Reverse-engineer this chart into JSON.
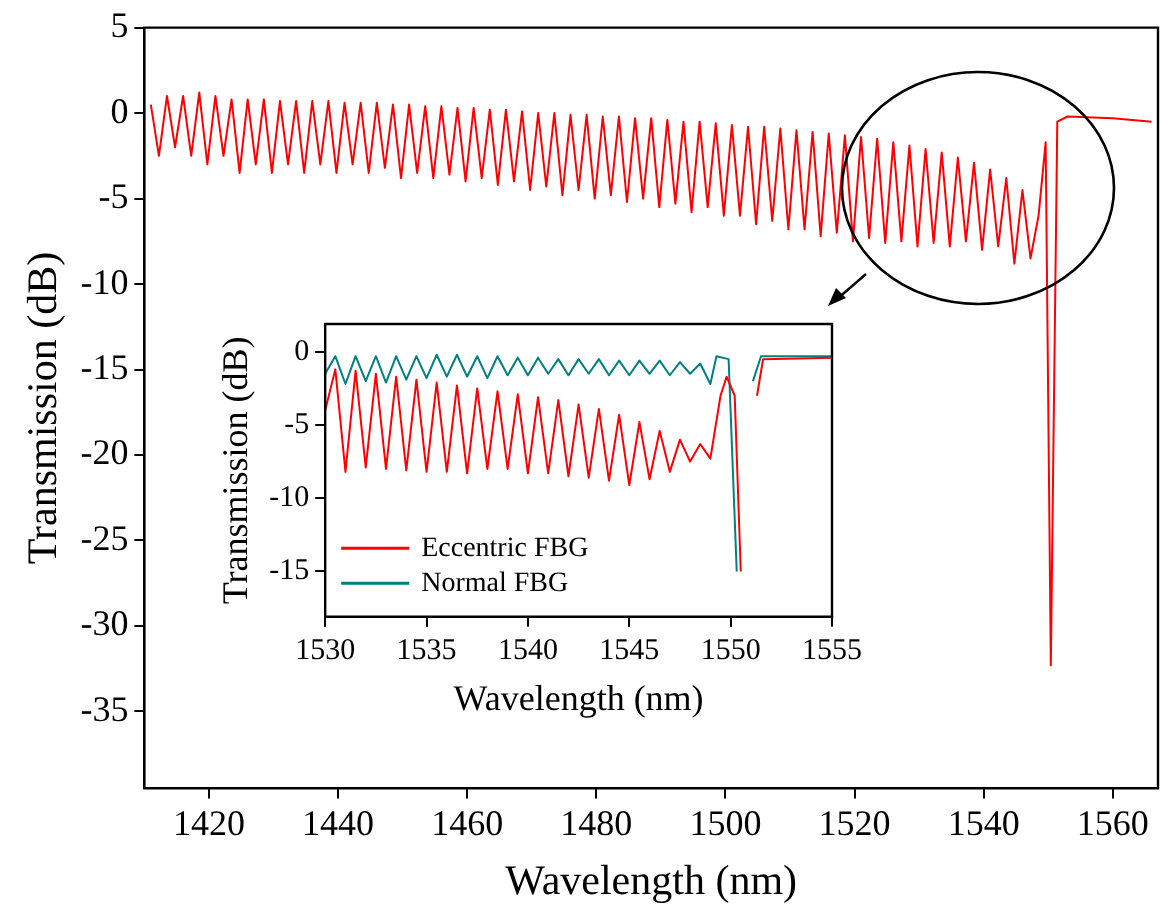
{
  "chart_data": [
    {
      "type": "line",
      "xlabel": "Wavelength (nm)",
      "ylabel": "Transmission (dB)",
      "xlim": [
        1410,
        1567
      ],
      "ylim": [
        -39.5,
        5
      ],
      "xticks": [
        1420,
        1440,
        1460,
        1480,
        1500,
        1520,
        1540,
        1560
      ],
      "yticks": [
        -35,
        -30,
        -25,
        -20,
        -15,
        -10,
        -5,
        0,
        5
      ],
      "grid": false,
      "series": [
        {
          "color": "#ff0000",
          "x": [
            1411,
            1412.25,
            1413.5,
            1414.75,
            1416,
            1417.25,
            1418.5,
            1419.75,
            1421,
            1422.25,
            1423.5,
            1424.75,
            1426,
            1427.25,
            1428.5,
            1429.75,
            1431,
            1432.25,
            1433.5,
            1434.75,
            1436,
            1437.25,
            1438.5,
            1439.75,
            1441,
            1442.25,
            1443.5,
            1444.75,
            1446,
            1447.25,
            1448.5,
            1449.75,
            1451,
            1452.25,
            1453.5,
            1454.75,
            1456,
            1457.25,
            1458.5,
            1459.75,
            1461,
            1462.25,
            1463.5,
            1464.75,
            1466,
            1467.25,
            1468.5,
            1469.75,
            1471,
            1472.25,
            1473.5,
            1474.75,
            1476,
            1477.25,
            1478.5,
            1479.75,
            1481,
            1482.25,
            1483.5,
            1484.75,
            1486,
            1487.25,
            1488.5,
            1489.75,
            1491,
            1492.25,
            1493.5,
            1494.75,
            1496,
            1497.25,
            1498.5,
            1499.75,
            1501,
            1502.25,
            1503.5,
            1504.75,
            1506,
            1507.25,
            1508.5,
            1509.75,
            1511,
            1512.25,
            1513.5,
            1514.75,
            1516,
            1517.25,
            1518.5,
            1519.75,
            1521,
            1522.25,
            1523.5,
            1524.75,
            1526,
            1527.25,
            1528.5,
            1529.75,
            1531,
            1532.25,
            1533.5,
            1534.75,
            1536,
            1537.25,
            1538.5,
            1539.75,
            1541,
            1542.25,
            1543.5,
            1544.75,
            1546,
            1547.25,
            1548.5,
            1549.6,
            1550.4,
            1551.4,
            1553,
            1560,
            1566
          ],
          "values": [
            0.5,
            -2.5,
            1,
            -2,
            1,
            -2.5,
            1.2,
            -3,
            1,
            -2.5,
            0.8,
            -3.5,
            0.8,
            -3,
            0.8,
            -3.5,
            0.7,
            -3,
            0.7,
            -3.5,
            0.7,
            -3,
            0.7,
            -3.5,
            0.6,
            -3,
            0.6,
            -3.5,
            0.6,
            -3.2,
            0.5,
            -3.8,
            0.5,
            -3.5,
            0.4,
            -3.8,
            0.4,
            -3.6,
            0.3,
            -4,
            0.3,
            -3.8,
            0.2,
            -4.2,
            0.2,
            -4,
            0.1,
            -4.5,
            0,
            -4.3,
            0,
            -4.8,
            -0.1,
            -4.5,
            -0.1,
            -5,
            -0.2,
            -4.8,
            -0.2,
            -5.2,
            -0.3,
            -5,
            -0.3,
            -5.5,
            -0.4,
            -5.3,
            -0.5,
            -5.8,
            -0.5,
            -5.5,
            -0.6,
            -6,
            -0.7,
            -6,
            -0.8,
            -6.5,
            -0.8,
            -6.3,
            -0.9,
            -6.8,
            -1,
            -6.8,
            -1.1,
            -7.2,
            -1.2,
            -7,
            -1.3,
            -7.5,
            -1.4,
            -7.3,
            -1.5,
            -7.6,
            -1.7,
            -7.5,
            -1.9,
            -7.8,
            -2.1,
            -7.6,
            -2.3,
            -7.8,
            -2.6,
            -7.5,
            -2.9,
            -8,
            -3.3,
            -7.8,
            -3.8,
            -8.8,
            -4.5,
            -8.5,
            -6,
            -1.7,
            -32.3,
            -0.5,
            -0.2,
            -0.3,
            -0.5
          ]
        }
      ]
    },
    {
      "type": "line",
      "xlabel": "Wavelength (nm)",
      "ylabel": "Transmission (dB)",
      "xlim": [
        1530,
        1555
      ],
      "ylim": [
        -18.1,
        1.9
      ],
      "xticks": [
        1530,
        1535,
        1540,
        1545,
        1550,
        1555
      ],
      "yticks": [
        -15,
        -10,
        -5,
        0
      ],
      "grid": false,
      "legend": "bottom left",
      "series": [
        {
          "name": "Eccentric FBG",
          "color": "#ff0000",
          "x": [
            1530,
            1530.5,
            1531,
            1531.5,
            1532,
            1532.5,
            1533,
            1533.5,
            1534,
            1534.5,
            1535,
            1535.5,
            1536,
            1536.5,
            1537,
            1537.5,
            1538,
            1538.5,
            1539,
            1539.5,
            1540,
            1540.5,
            1541,
            1541.5,
            1542,
            1542.5,
            1543,
            1543.5,
            1544,
            1544.5,
            1545,
            1545.5,
            1546,
            1546.5,
            1547,
            1547.5,
            1548,
            1548.5,
            1549,
            1549.5,
            1549.8,
            1550.2,
            1550.5,
            1550.7,
            1551,
            1551.3,
            1551.6,
            1555
          ],
          "values": [
            -4,
            -1.2,
            -8.2,
            -1.3,
            -7.9,
            -1.5,
            -8,
            -1.7,
            -8.1,
            -1.9,
            -8.2,
            -2.1,
            -8.2,
            -2.3,
            -8.3,
            -2.5,
            -8,
            -2.7,
            -8,
            -2.9,
            -8.3,
            -3.1,
            -8.3,
            -3.3,
            -8.5,
            -3.6,
            -8.6,
            -3.9,
            -8.8,
            -4.3,
            -9.1,
            -4.8,
            -8.7,
            -5.4,
            -8.2,
            -6,
            -7.5,
            -6.3,
            -7.3,
            -3,
            -1.7,
            -3,
            -15,
            null,
            null,
            -3,
            -0.5,
            -0.4
          ]
        },
        {
          "name": "Normal FBG",
          "color": "#008080",
          "x": [
            1530,
            1530.5,
            1531,
            1531.5,
            1532,
            1532.5,
            1533,
            1533.5,
            1534,
            1534.5,
            1535,
            1535.5,
            1536,
            1536.5,
            1537,
            1537.5,
            1538,
            1538.5,
            1539,
            1539.5,
            1540,
            1540.5,
            1541,
            1541.5,
            1542,
            1542.5,
            1543,
            1543.5,
            1544,
            1544.5,
            1545,
            1545.5,
            1546,
            1546.5,
            1547,
            1547.5,
            1548,
            1548.5,
            1549,
            1549.3,
            1549.9,
            1550.3,
            1550.5,
            1550.8,
            1551.1,
            1551.5,
            1555
          ],
          "values": [
            -1.5,
            -0.3,
            -2.2,
            -0.3,
            -2,
            -0.3,
            -2.1,
            -0.3,
            -1.9,
            -0.3,
            -1.8,
            -0.2,
            -1.7,
            -0.2,
            -1.7,
            -0.3,
            -1.8,
            -0.3,
            -1.6,
            -0.4,
            -1.6,
            -0.4,
            -1.5,
            -0.5,
            -1.6,
            -0.5,
            -1.5,
            -0.5,
            -1.6,
            -0.6,
            -1.6,
            -0.6,
            -1.5,
            -0.6,
            -1.6,
            -0.7,
            -1.5,
            -0.8,
            -2.2,
            -0.3,
            -0.5,
            -15,
            null,
            null,
            -2,
            -0.3,
            -0.3
          ]
        }
      ]
    }
  ]
}
